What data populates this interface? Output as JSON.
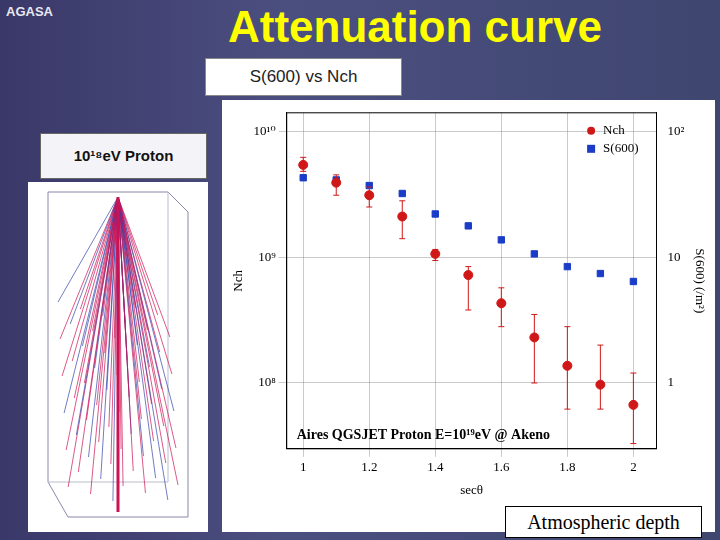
{
  "header": {
    "logo": "AGASA",
    "title": "Attenuation curve"
  },
  "callout": "S(600) vs Nch",
  "image_label": "10¹⁸eV Proton",
  "footer_box": "Atmospheric depth",
  "chart_data": {
    "type": "scatter",
    "annotation": "Aires QGSJET Proton E=10¹⁹eV @ Akeno",
    "x_label": "secθ",
    "y_label": "Nch",
    "y2_label": "S(600) (/m²)",
    "xlim": [
      0.95,
      2.07
    ],
    "xticks": [
      1,
      1.2,
      1.4,
      1.6,
      1.8,
      2
    ],
    "ylim": [
      30000000,
      14000000000
    ],
    "yticks": [
      {
        "value": 100000000,
        "label": "10⁸"
      },
      {
        "value": 1000000000,
        "label": "10⁹"
      },
      {
        "value": 10000000000,
        "label": "10¹⁰"
      }
    ],
    "y2lim": [
      0.3,
      140
    ],
    "y2ticks": [
      1,
      10,
      {
        "value": 100,
        "label": "10²"
      }
    ],
    "log": "y",
    "grid": true,
    "legend": "top-right",
    "series": [
      {
        "name": "Nch",
        "color": "#d01818",
        "marker": "circle",
        "x": [
          1,
          1.1,
          1.2,
          1.3,
          1.4,
          1.5,
          1.6,
          1.7,
          1.8,
          1.9,
          2
        ],
        "values": [
          5400000000,
          3900000000,
          3100000000,
          2100000000,
          1060000000,
          720000000,
          430000000,
          230000000,
          137000000,
          97000000,
          67000000
        ],
        "error_low": [
          4800000000,
          3100000000,
          2500000000,
          1400000000,
          940000000,
          380000000,
          280000000,
          100000000,
          62000000,
          62000000,
          33000000
        ],
        "error_high": [
          6200000000,
          4500000000,
          3600000000,
          2800000000,
          1150000000,
          840000000,
          570000000,
          350000000,
          280000000,
          200000000,
          120000000
        ]
      },
      {
        "name": "S(600)",
        "color": "#1a3cc8",
        "marker": "square",
        "axis": "y2",
        "x": [
          1,
          1.1,
          1.2,
          1.3,
          1.4,
          1.5,
          1.6,
          1.7,
          1.8,
          1.9,
          2
        ],
        "values": [
          42.7,
          41,
          37,
          32,
          22,
          17.7,
          13.7,
          10.6,
          8.4,
          7.4,
          6.4
        ]
      }
    ]
  }
}
